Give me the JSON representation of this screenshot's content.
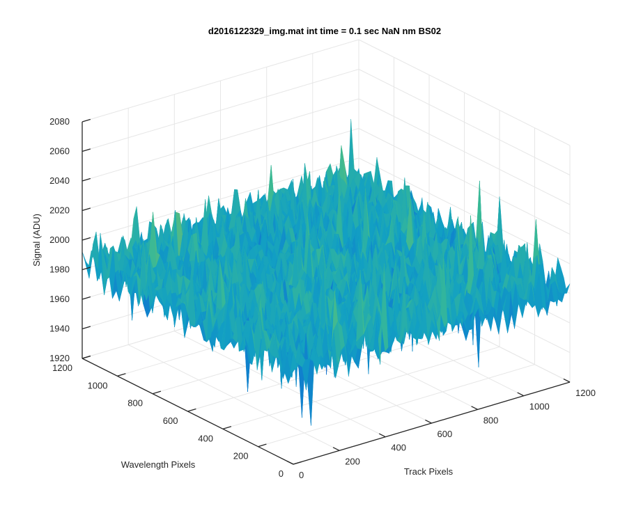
{
  "chart_data": {
    "type": "surface",
    "title": "d2016122329_img.mat int time = 0.1 sec  NaN nm BS02",
    "xlabel": "Track Pixels",
    "ylabel": "Wavelength Pixels",
    "zlabel": "Signal (ADU)",
    "x_range": [
      0,
      1200
    ],
    "y_range": [
      0,
      1200
    ],
    "z_range": [
      1920,
      2080
    ],
    "x_ticks": [
      "0",
      "200",
      "400",
      "600",
      "800",
      "1000",
      "1200"
    ],
    "y_ticks": [
      "0",
      "200",
      "400",
      "600",
      "800",
      "1000",
      "1200"
    ],
    "z_ticks": [
      "1920",
      "1940",
      "1960",
      "1980",
      "2000",
      "2020",
      "2040",
      "2060",
      "2080"
    ],
    "surface_mean": 1985,
    "surface_noise_range": [
      1930,
      2070
    ],
    "colormap": "parula",
    "grid": true
  }
}
